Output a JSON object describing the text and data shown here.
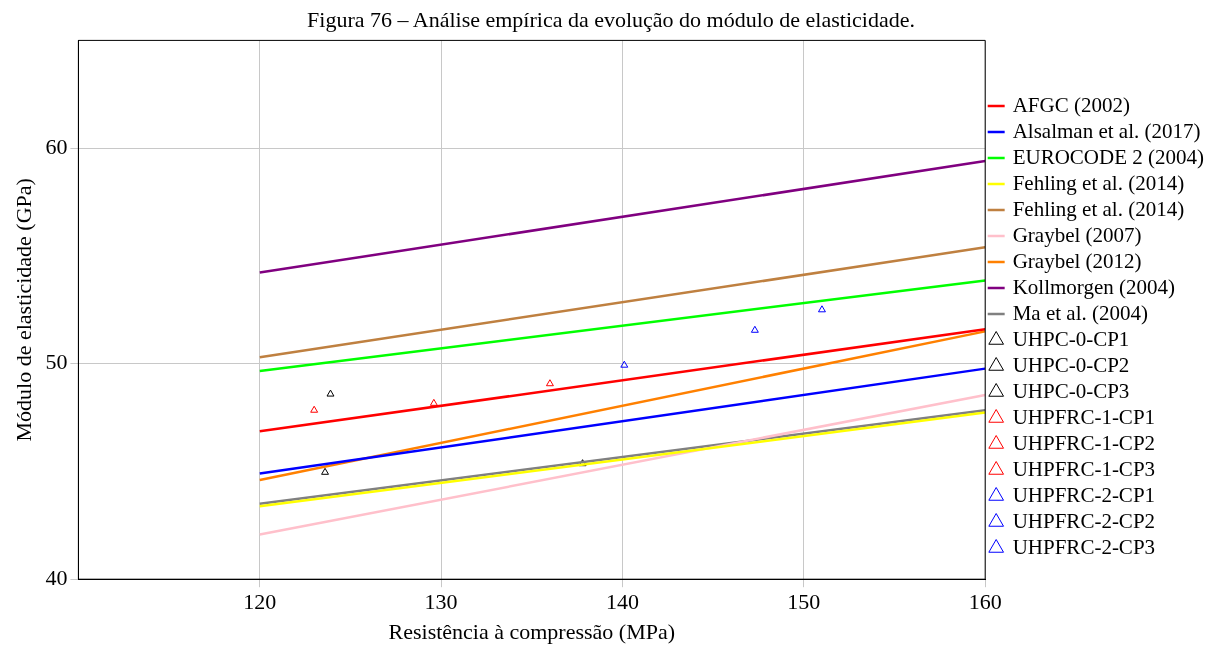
{
  "chart_data": {
    "type": "line",
    "title": "Figura 76 – Análise empírica da evolução do módulo de elasticidade.",
    "xlabel": "Resistência à compressão (MPa)",
    "ylabel": "Módulo de elasticidade (GPa)",
    "xlim": [
      110,
      160
    ],
    "ylim": [
      40,
      65
    ],
    "xticks": [
      120,
      130,
      140,
      150,
      160
    ],
    "yticks": [
      40,
      50,
      60
    ],
    "grid": true,
    "legend": "right",
    "line_style": "solid",
    "series": [
      {
        "name": "AFGC (2002)",
        "type": "line",
        "marker": "none",
        "color": "#ff0000",
        "x": [
          120,
          160
        ],
        "values": [
          46.86,
          51.6
        ]
      },
      {
        "name": "Alsalman et al. (2017)",
        "type": "line",
        "marker": "none",
        "color": "#0000ff",
        "x": [
          120,
          160
        ],
        "values": [
          44.9,
          49.77
        ]
      },
      {
        "name": "EUROCODE 2 (2004)",
        "type": "line",
        "marker": "none",
        "color": "#00ff00",
        "x": [
          120,
          160
        ],
        "values": [
          49.66,
          53.86
        ]
      },
      {
        "name": "Fehling et al. (2014)",
        "type": "line",
        "marker": "none",
        "color": "#ffff00",
        "x": [
          120,
          160
        ],
        "values": [
          43.38,
          47.73
        ]
      },
      {
        "name": "Fehling et al. (2014)",
        "type": "line",
        "marker": "none",
        "color": "#bf8040",
        "x": [
          120,
          160
        ],
        "values": [
          50.3,
          55.4
        ]
      },
      {
        "name": "Graybel (2007)",
        "type": "line",
        "marker": "none",
        "color": "#ffc0cb",
        "x": [
          120,
          160
        ],
        "values": [
          42.07,
          48.55
        ]
      },
      {
        "name": "Graybel (2012)",
        "type": "line",
        "marker": "none",
        "color": "#ff8000",
        "x": [
          120,
          160
        ],
        "values": [
          44.6,
          51.5
        ]
      },
      {
        "name": "Kollmorgen (2004)",
        "type": "line",
        "marker": "none",
        "color": "#800080",
        "x": [
          120,
          160
        ],
        "values": [
          54.23,
          59.4
        ]
      },
      {
        "name": "Ma et al. (2004)",
        "type": "line",
        "marker": "none",
        "color": "#808080",
        "x": [
          120,
          160
        ],
        "values": [
          43.5,
          47.84
        ]
      },
      {
        "name": "UHPC-0-CP1",
        "type": "scatter",
        "marker": "triangle",
        "color": "#000000",
        "x": [
          123.6
        ],
        "values": [
          44.96
        ]
      },
      {
        "name": "UHPC-0-CP2",
        "type": "scatter",
        "marker": "triangle",
        "color": "#000000",
        "x": [
          123.9
        ],
        "values": [
          48.59
        ]
      },
      {
        "name": "UHPC-0-CP3",
        "type": "scatter",
        "marker": "triangle",
        "color": "#000000",
        "x": [
          137.8
        ],
        "values": [
          45.36
        ]
      },
      {
        "name": "UHPFRC-1-CP1",
        "type": "scatter",
        "marker": "triangle",
        "color": "#ff0000",
        "x": [
          123.0
        ],
        "values": [
          47.84
        ]
      },
      {
        "name": "UHPFRC-1-CP2",
        "type": "scatter",
        "marker": "triangle",
        "color": "#ff0000",
        "x": [
          129.6
        ],
        "values": [
          48.16
        ]
      },
      {
        "name": "UHPFRC-1-CP3",
        "type": "scatter",
        "marker": "triangle",
        "color": "#ff0000",
        "x": [
          136.0
        ],
        "values": [
          49.07
        ]
      },
      {
        "name": "UHPFRC-2-CP1",
        "type": "scatter",
        "marker": "triangle",
        "color": "#0000ff",
        "x": [
          140.1
        ],
        "values": [
          49.93
        ]
      },
      {
        "name": "UHPFRC-2-CP2",
        "type": "scatter",
        "marker": "triangle",
        "color": "#0000ff",
        "x": [
          147.3
        ],
        "values": [
          51.55
        ]
      },
      {
        "name": "UHPFRC-2-CP3",
        "type": "scatter",
        "marker": "triangle",
        "color": "#0000ff",
        "x": [
          151.0
        ],
        "values": [
          52.5
        ]
      }
    ]
  }
}
